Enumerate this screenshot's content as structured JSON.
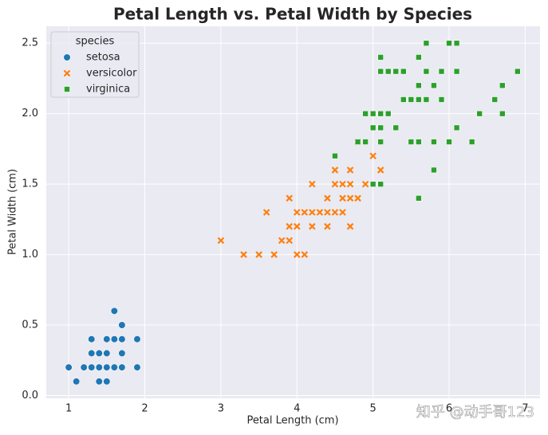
{
  "chart_data": {
    "type": "scatter",
    "title": "Petal Length vs. Petal Width by Species",
    "x_label": "Petal Length (cm)",
    "y_label": "Petal Width (cm)",
    "legend_title": "species",
    "legend_position": "upper left",
    "grid": true,
    "annotation": "知乎 @动手哥123",
    "xlim": [
      0.705,
      7.195
    ],
    "ylim": [
      -0.02,
      2.62
    ],
    "xticks": [
      1,
      2,
      3,
      4,
      5,
      6,
      7
    ],
    "yticks": [
      {
        "value": 0,
        "label": "0.0"
      },
      0.5,
      {
        "value": 1,
        "label": "1.0"
      },
      1.5,
      {
        "value": 2,
        "label": "2.0"
      },
      2.5
    ],
    "series": [
      {
        "name": "setosa",
        "color": "#1f77b4",
        "marker": "o",
        "x": [
          1.0,
          1.1,
          1.2,
          1.3,
          1.3,
          1.3,
          1.4,
          1.4,
          1.4,
          1.5,
          1.5,
          1.5,
          1.5,
          1.6,
          1.6,
          1.6,
          1.7,
          1.7,
          1.7,
          1.7,
          1.9,
          1.9
        ],
        "values": [
          0.2,
          0.1,
          0.2,
          0.2,
          0.3,
          0.4,
          0.1,
          0.2,
          0.3,
          0.1,
          0.2,
          0.3,
          0.4,
          0.2,
          0.4,
          0.6,
          0.2,
          0.3,
          0.4,
          0.5,
          0.2,
          0.4
        ]
      },
      {
        "name": "versicolor",
        "color": "#ff7f0e",
        "marker": "x",
        "x": [
          3.0,
          3.3,
          3.5,
          3.6,
          3.7,
          3.8,
          3.9,
          3.9,
          3.9,
          4.0,
          4.0,
          4.0,
          4.1,
          4.1,
          4.2,
          4.2,
          4.2,
          4.3,
          4.4,
          4.4,
          4.4,
          4.5,
          4.5,
          4.5,
          4.6,
          4.6,
          4.6,
          4.7,
          4.7,
          4.7,
          4.7,
          4.8,
          4.8,
          4.9,
          5.0,
          5.1
        ],
        "values": [
          1.1,
          1.0,
          1.0,
          1.3,
          1.0,
          1.1,
          1.1,
          1.2,
          1.4,
          1.0,
          1.2,
          1.3,
          1.0,
          1.3,
          1.2,
          1.3,
          1.5,
          1.3,
          1.2,
          1.3,
          1.4,
          1.3,
          1.5,
          1.6,
          1.3,
          1.4,
          1.5,
          1.2,
          1.4,
          1.5,
          1.6,
          1.4,
          1.8,
          1.5,
          1.7,
          1.6
        ]
      },
      {
        "name": "virginica",
        "color": "#2ca02c",
        "marker": "s",
        "x": [
          4.5,
          4.8,
          4.9,
          4.9,
          5.0,
          5.0,
          5.0,
          5.1,
          5.1,
          5.1,
          5.1,
          5.1,
          5.1,
          5.2,
          5.2,
          5.3,
          5.3,
          5.4,
          5.4,
          5.5,
          5.5,
          5.6,
          5.6,
          5.6,
          5.6,
          5.6,
          5.7,
          5.7,
          5.7,
          5.8,
          5.8,
          5.8,
          5.9,
          5.9,
          6.0,
          6.0,
          6.1,
          6.1,
          6.1,
          6.3,
          6.4,
          6.6,
          6.7,
          6.7,
          6.9
        ],
        "values": [
          1.7,
          1.8,
          1.8,
          2.0,
          1.5,
          1.9,
          2.0,
          1.5,
          1.8,
          1.9,
          2.0,
          2.3,
          2.4,
          2.0,
          2.3,
          1.9,
          2.3,
          2.1,
          2.3,
          1.8,
          2.1,
          1.4,
          1.8,
          2.1,
          2.2,
          2.4,
          2.1,
          2.3,
          2.5,
          1.6,
          1.8,
          2.2,
          2.1,
          2.3,
          1.8,
          2.5,
          1.9,
          2.3,
          2.5,
          1.8,
          2.0,
          2.1,
          2.0,
          2.2,
          2.3
        ]
      }
    ]
  }
}
